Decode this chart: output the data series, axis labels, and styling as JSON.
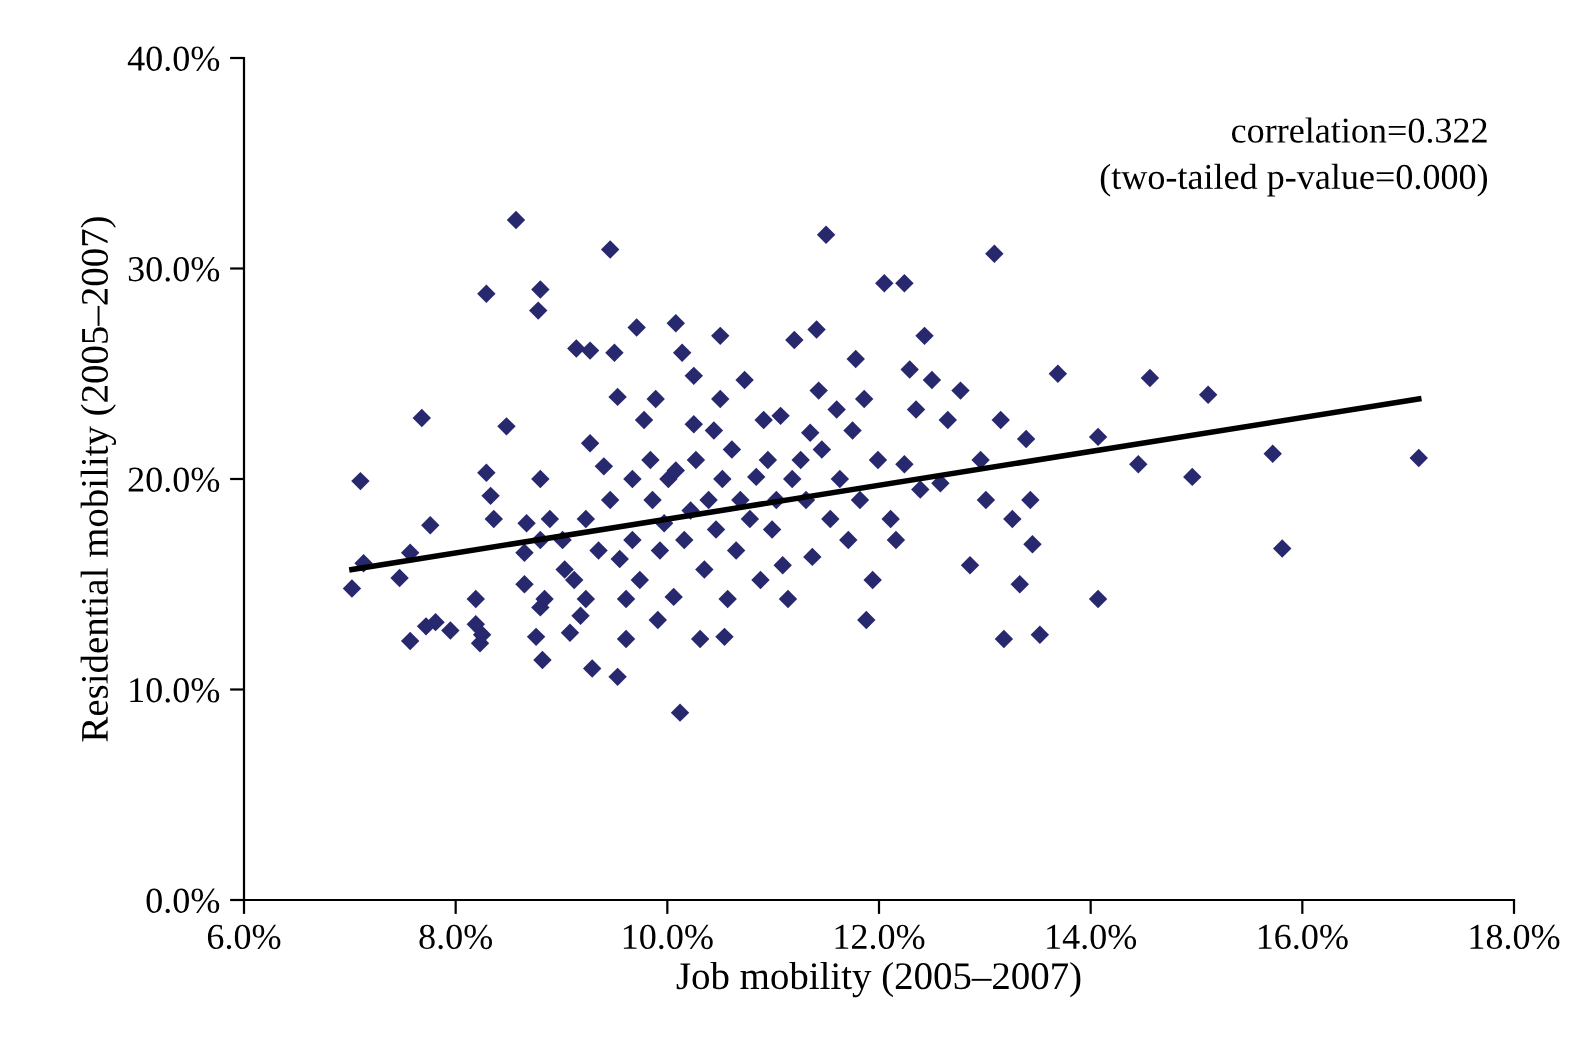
{
  "chart_data": {
    "type": "scatter",
    "xlabel": "Job mobility (2005–2007)",
    "ylabel": "Residential mobility (2005–2007)",
    "annotations": [
      "correlation=0.322",
      "(two-tailed p-value=0.000)"
    ],
    "xlim": [
      6,
      18
    ],
    "xticks": [
      {
        "value": 6,
        "label": "6.0%"
      },
      {
        "value": 8,
        "label": "8.0%"
      },
      {
        "value": 10,
        "label": "10.0%"
      },
      {
        "value": 12,
        "label": "12.0%"
      },
      {
        "value": 14,
        "label": "14.0%"
      },
      {
        "value": 16,
        "label": "16.0%"
      },
      {
        "value": 18,
        "label": "18.0%"
      }
    ],
    "ylim": [
      0,
      40
    ],
    "yticks": [
      {
        "value": 0,
        "label": "0.0%"
      },
      {
        "value": 10,
        "label": "10.0%"
      },
      {
        "value": 20,
        "label": "20.0%"
      },
      {
        "value": 30,
        "label": "30.0%"
      },
      {
        "value": 40,
        "label": "40.0%"
      }
    ],
    "grid": false,
    "legend": false,
    "marker": "diamond",
    "series": [
      {
        "color": "#28286e",
        "x": [
          7.02,
          7.1,
          7.13,
          7.47,
          7.57,
          7.57,
          7.68,
          7.76,
          7.81,
          7.95,
          7.72,
          8.19,
          8.19,
          8.23,
          8.25,
          8.29,
          8.29,
          8.33,
          8.36,
          8.48,
          8.57,
          8.65,
          8.65,
          8.67,
          8.76,
          8.8,
          8.82,
          8.84,
          8.8,
          8.8,
          8.78,
          8.8,
          8.89,
          9.01,
          9.03,
          9.08,
          9.14,
          9.12,
          9.18,
          9.23,
          9.23,
          9.27,
          9.27,
          9.29,
          9.35,
          9.4,
          9.46,
          9.46,
          9.5,
          9.53,
          9.53,
          9.55,
          9.61,
          9.61,
          9.67,
          9.67,
          9.71,
          9.74,
          9.78,
          9.84,
          9.86,
          9.89,
          9.91,
          9.93,
          9.97,
          10.01,
          10.06,
          10.08,
          10.08,
          10.12,
          10.14,
          10.16,
          10.22,
          10.25,
          10.25,
          10.27,
          10.31,
          10.35,
          10.39,
          10.44,
          10.46,
          10.5,
          10.5,
          10.52,
          10.54,
          10.57,
          10.61,
          10.65,
          10.69,
          10.73,
          10.78,
          10.84,
          10.88,
          10.91,
          10.95,
          10.99,
          11.03,
          11.07,
          11.09,
          11.14,
          11.18,
          11.2,
          11.26,
          11.31,
          11.35,
          11.37,
          11.41,
          11.43,
          11.46,
          11.5,
          11.54,
          11.6,
          11.63,
          11.71,
          11.75,
          11.78,
          11.82,
          11.86,
          11.88,
          11.94,
          11.99,
          12.05,
          12.11,
          12.16,
          12.24,
          12.24,
          12.29,
          12.35,
          12.39,
          12.43,
          12.5,
          12.58,
          12.65,
          12.77,
          12.86,
          12.96,
          13.01,
          13.09,
          13.15,
          13.18,
          13.26,
          13.33,
          13.39,
          13.43,
          13.45,
          13.52,
          13.69,
          14.07,
          14.07,
          14.45,
          14.56,
          14.96,
          15.11,
          15.72,
          15.81,
          17.1
        ],
        "values": [
          14.8,
          19.9,
          16.0,
          15.3,
          16.5,
          12.3,
          22.9,
          17.8,
          13.2,
          12.8,
          13.0,
          14.3,
          13.1,
          12.2,
          12.6,
          20.3,
          28.8,
          19.2,
          18.1,
          22.5,
          32.3,
          15.0,
          16.5,
          17.9,
          12.5,
          13.9,
          11.4,
          14.3,
          17.1,
          20.0,
          28.0,
          29.0,
          18.1,
          17.1,
          15.7,
          12.7,
          26.2,
          15.2,
          13.5,
          14.3,
          18.1,
          21.7,
          26.1,
          11.0,
          16.6,
          20.6,
          30.9,
          19.0,
          26.0,
          23.9,
          10.6,
          16.2,
          14.3,
          12.4,
          17.1,
          20.0,
          27.2,
          15.2,
          22.8,
          20.9,
          19.0,
          23.8,
          13.3,
          16.6,
          17.9,
          20.0,
          14.4,
          27.4,
          20.4,
          8.9,
          26.0,
          17.1,
          18.5,
          22.6,
          24.9,
          20.9,
          12.4,
          15.7,
          19.0,
          22.3,
          17.6,
          26.8,
          23.8,
          20.0,
          12.5,
          14.3,
          21.4,
          16.6,
          19.0,
          24.7,
          18.1,
          20.1,
          15.2,
          22.8,
          20.9,
          17.6,
          19.0,
          23.0,
          15.9,
          14.3,
          20.0,
          26.6,
          20.9,
          19.0,
          22.2,
          16.3,
          27.1,
          24.2,
          21.4,
          31.6,
          18.1,
          23.3,
          20.0,
          17.1,
          22.3,
          25.7,
          19.0,
          23.8,
          13.3,
          15.2,
          20.9,
          29.3,
          18.1,
          17.1,
          29.3,
          20.7,
          25.2,
          23.3,
          19.5,
          26.8,
          24.7,
          19.8,
          22.8,
          24.2,
          15.9,
          20.9,
          19.0,
          30.7,
          22.8,
          12.4,
          18.1,
          15.0,
          21.9,
          19.0,
          16.9,
          12.6,
          25.0,
          14.3,
          22.0,
          20.7,
          24.8,
          20.1,
          24.0,
          21.2,
          16.7,
          21.0
        ]
      },
      {
        "type": "line",
        "color": "#000000",
        "marker": "none",
        "line_style": "solid",
        "x": [
          7.02,
          17.1
        ],
        "values": [
          15.7,
          23.8
        ]
      }
    ]
  }
}
